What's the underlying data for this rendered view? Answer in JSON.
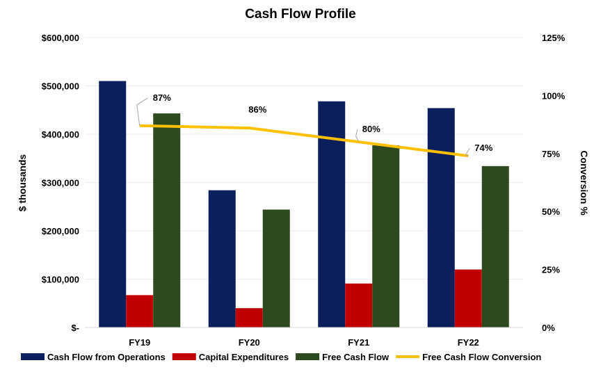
{
  "chart_data": {
    "type": "bar",
    "title": "Cash Flow Profile",
    "categories": [
      "FY19",
      "FY20",
      "FY21",
      "FY22"
    ],
    "ylabel": "$ thousands",
    "y2label": "Conversion %",
    "ylim": [
      0,
      600000
    ],
    "y2lim": [
      0,
      125
    ],
    "y_ticks": [
      0,
      100000,
      200000,
      300000,
      400000,
      500000,
      600000
    ],
    "y_tick_labels": [
      "$-",
      "$100,000",
      "$200,000",
      "$300,000",
      "$400,000",
      "$500,000",
      "$600,000"
    ],
    "y2_ticks": [
      0,
      25,
      50,
      75,
      100,
      125
    ],
    "y2_tick_labels": [
      "0%",
      "25%",
      "50%",
      "75%",
      "100%",
      "125%"
    ],
    "series": [
      {
        "name": "Cash Flow from Operations",
        "type": "bar",
        "color": "#0b1f5c",
        "values": [
          510000,
          284000,
          468000,
          454000
        ]
      },
      {
        "name": "Capital Expenditures",
        "type": "bar",
        "color": "#c00000",
        "values": [
          67000,
          40000,
          91000,
          120000
        ]
      },
      {
        "name": "Free Cash Flow",
        "type": "bar",
        "color": "#2d4a1e",
        "values": [
          443000,
          244000,
          377000,
          334000
        ]
      },
      {
        "name": "Free Cash Flow Conversion",
        "type": "line",
        "axis": "right",
        "color": "#ffc000",
        "values": [
          87,
          86,
          80,
          74
        ],
        "labels": [
          "87%",
          "86%",
          "80%",
          "74%"
        ]
      }
    ],
    "legend_position": "bottom",
    "grid": true
  }
}
